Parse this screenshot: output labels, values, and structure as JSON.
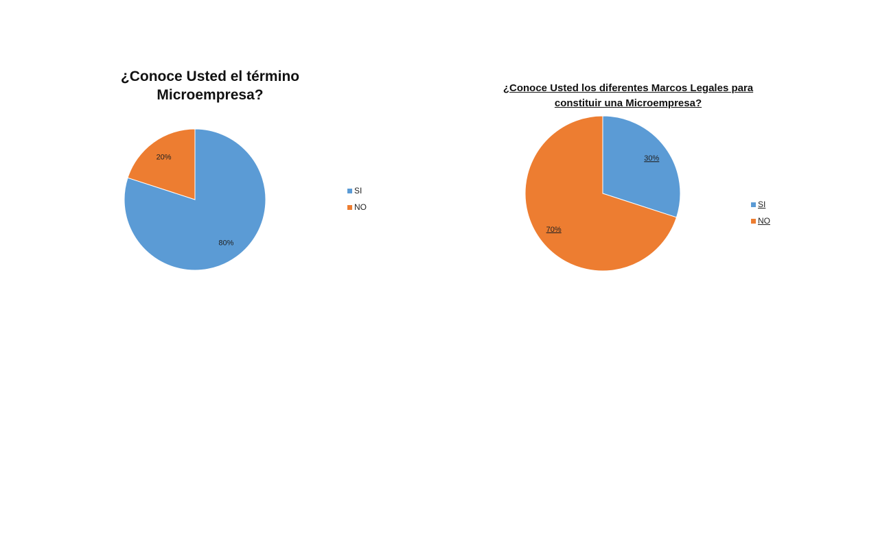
{
  "chart_data": [
    {
      "type": "pie",
      "title": "¿Conoce Usted el término\nMicroempresa?",
      "categories": [
        "SI",
        "NO"
      ],
      "values": [
        80,
        20
      ],
      "labels": [
        "80%",
        "20%"
      ],
      "colors": [
        "#5B9BD5",
        "#ED7D31"
      ],
      "legend_position": "right"
    },
    {
      "type": "pie",
      "title": "¿Conoce Usted los diferentes Marcos Legales para\nconstituir una Microempresa?",
      "categories": [
        "SI",
        "NO"
      ],
      "values": [
        30,
        70
      ],
      "labels": [
        "30%",
        "70%"
      ],
      "colors": [
        "#5B9BD5",
        "#ED7D31"
      ],
      "legend_position": "right"
    }
  ]
}
